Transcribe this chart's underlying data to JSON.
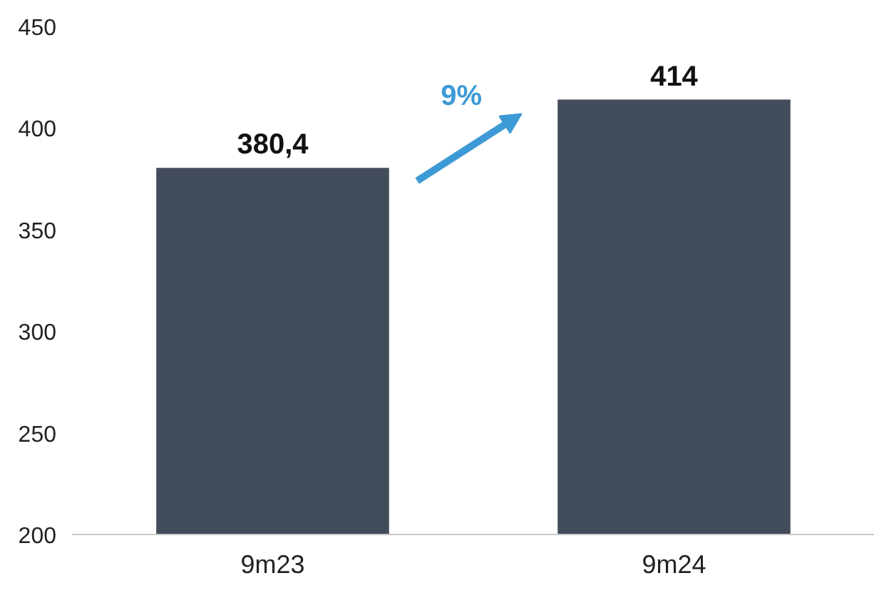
{
  "chart_data": {
    "type": "bar",
    "categories": [
      "9m23",
      "9m24"
    ],
    "values": [
      380.4,
      414
    ],
    "value_labels": [
      "380,4",
      "414"
    ],
    "color": "#434c5a",
    "ylim": [
      200,
      450
    ],
    "yticks": [
      200,
      250,
      300,
      350,
      400,
      450
    ],
    "grid": false,
    "annotations": [
      "9%"
    ]
  }
}
